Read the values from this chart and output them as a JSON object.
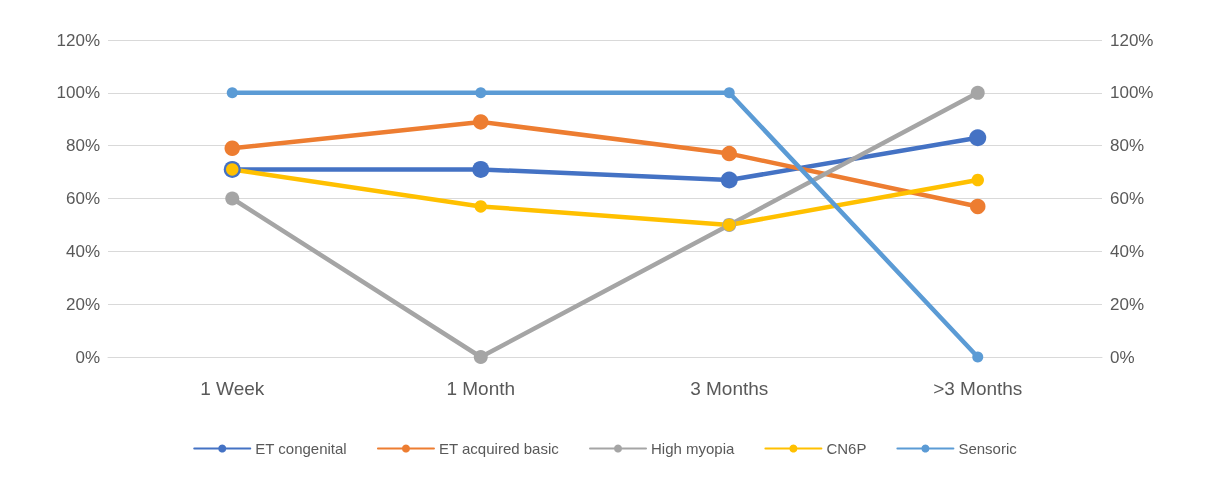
{
  "chart_data": {
    "type": "line",
    "categories": [
      "1 Week",
      "1 Month",
      "3 Months",
      ">3 Months"
    ],
    "series": [
      {
        "name": "ET congenital",
        "color": "#4472c4",
        "values": [
          71,
          71,
          67,
          83
        ]
      },
      {
        "name": "ET acquired basic",
        "color": "#ed7d31",
        "values": [
          79,
          89,
          77,
          57
        ]
      },
      {
        "name": "High myopia",
        "color": "#a5a5a5",
        "values": [
          60,
          0,
          50,
          100
        ]
      },
      {
        "name": "CN6P",
        "color": "#ffc000",
        "values": [
          71,
          57,
          50,
          67
        ]
      },
      {
        "name": "Sensoric",
        "color": "#5b9bd5",
        "values": [
          100,
          100,
          100,
          0
        ]
      }
    ],
    "ylim": [
      0,
      120
    ],
    "yticks": [
      {
        "value": 0,
        "label": "0%"
      },
      {
        "value": 20,
        "label": "20%"
      },
      {
        "value": 40,
        "label": "40%"
      },
      {
        "value": 60,
        "label": "60%"
      },
      {
        "value": 80,
        "label": "80%"
      },
      {
        "value": 100,
        "label": "100%"
      },
      {
        "value": 120,
        "label": "120%"
      }
    ],
    "y2lim": [
      0,
      120
    ],
    "y2ticks": [
      {
        "value": 0,
        "label": "0%"
      },
      {
        "value": 20,
        "label": "20%"
      },
      {
        "value": 40,
        "label": "40%"
      },
      {
        "value": 60,
        "label": "60%"
      },
      {
        "value": 80,
        "label": "80%"
      },
      {
        "value": 100,
        "label": "100%"
      },
      {
        "value": 120,
        "label": "120%"
      }
    ],
    "grid": "y",
    "legend": "bottom",
    "marker": "circle",
    "line_style": "solid"
  }
}
